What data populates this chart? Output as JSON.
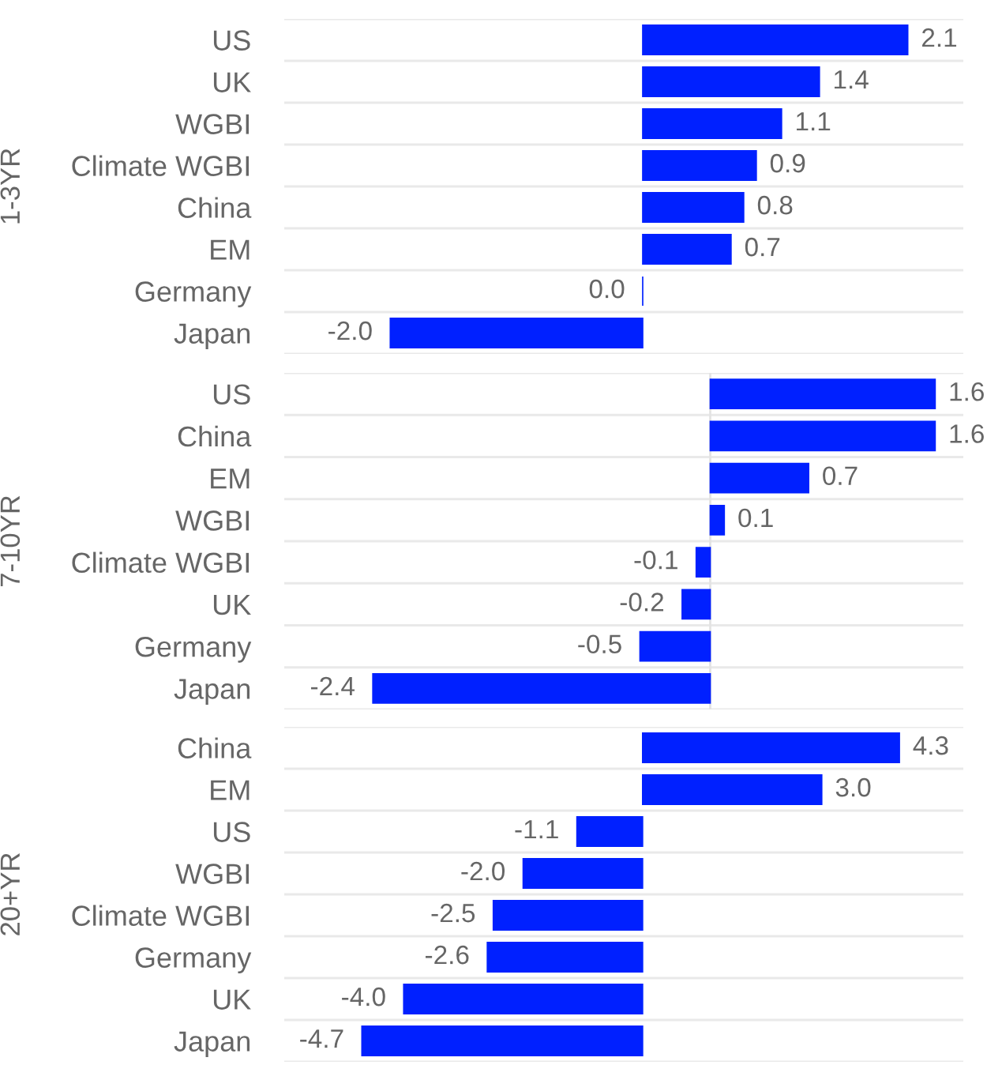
{
  "chart_data": [
    {
      "type": "bar",
      "orientation": "horizontal",
      "ylabel": "1-3YR",
      "categories": [
        "US",
        "UK",
        "WGBI",
        "Climate WGBI",
        "China",
        "EM",
        "Germany",
        "Japan"
      ],
      "values": [
        2.1,
        1.4,
        1.1,
        0.9,
        0.8,
        0.7,
        0.0,
        -2.0
      ],
      "value_labels": [
        "2.1",
        "1.4",
        "1.1",
        "0.9",
        "0.8",
        "0.7",
        "0.0",
        "-2.0"
      ],
      "color": "#0020ff",
      "xlim": [
        -2.84,
        2.54
      ],
      "tick_labels": "y",
      "grid": "y"
    },
    {
      "type": "bar",
      "orientation": "horizontal",
      "ylabel": "7-10YR",
      "categories": [
        "US",
        "China",
        "EM",
        "WGBI",
        "Climate WGBI",
        "UK",
        "Germany",
        "Japan"
      ],
      "values": [
        1.6,
        1.6,
        0.7,
        0.1,
        -0.1,
        -0.2,
        -0.5,
        -2.4
      ],
      "value_labels": [
        "1.6",
        "1.6",
        "0.7",
        "0.1",
        "-0.1",
        "-0.2",
        "-0.5",
        "-2.4"
      ],
      "color": "#0020ff",
      "xlim": [
        -3.03,
        1.8
      ],
      "tick_labels": "y",
      "grid": "y",
      "ref_lines": [
        {
          "axis": "x",
          "value": 0,
          "color": "#e3e3e3"
        }
      ]
    },
    {
      "type": "bar",
      "orientation": "horizontal",
      "ylabel": "20+YR",
      "categories": [
        "China",
        "EM",
        "US",
        "WGBI",
        "Climate WGBI",
        "Germany",
        "UK",
        "Japan"
      ],
      "values": [
        4.3,
        3.0,
        -1.1,
        -2.0,
        -2.5,
        -2.6,
        -4.0,
        -4.7
      ],
      "value_labels": [
        "4.3",
        "3.0",
        "-1.1",
        "-2.0",
        "-2.5",
        "-2.6",
        "-4.0",
        "-4.7"
      ],
      "color": "#0020ff",
      "xlim": [
        -6.0,
        5.37
      ],
      "tick_labels": "y",
      "grid": "y"
    }
  ]
}
